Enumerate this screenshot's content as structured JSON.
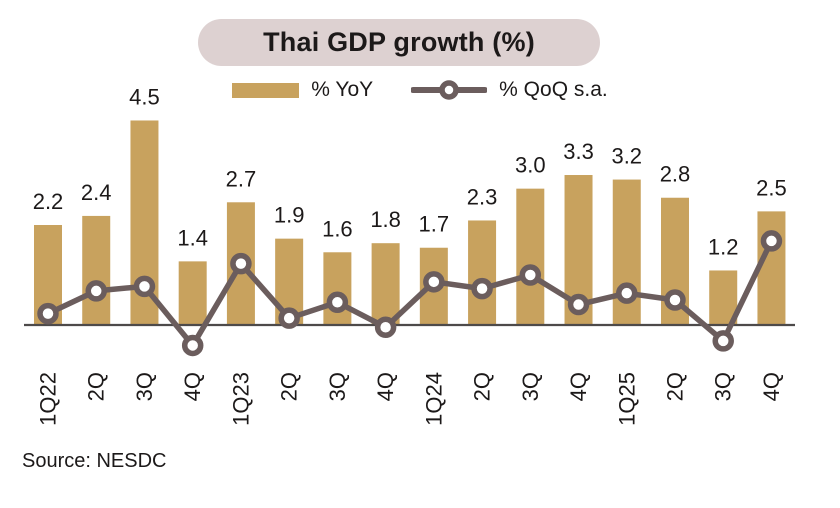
{
  "title": "Thai GDP growth (%)",
  "source": "Source: NESDC",
  "legend": {
    "items": [
      {
        "label": "% YoY",
        "swatch": "bar"
      },
      {
        "label": "% QoQ s.a.",
        "swatch": "line-marker"
      }
    ]
  },
  "colors": {
    "bar": "#C8A25E",
    "line": "#6B5D5D",
    "marker_fill": "#FFFFFF",
    "axis": "#4D4A4A",
    "title_pill_bg": "#DDD1D1",
    "text": "#1C1919"
  },
  "chart_data": {
    "type": "bar+line combo",
    "title": "Thai GDP growth (%)",
    "xlabel": "",
    "ylabel": "",
    "y_axis_visible": false,
    "grid": false,
    "legend_position": "top-center",
    "baseline_axis": true,
    "ylim": [
      -1.0,
      5.0
    ],
    "categories": [
      "1Q22",
      "2Q",
      "3Q",
      "4Q",
      "1Q23",
      "2Q",
      "3Q",
      "4Q",
      "1Q24",
      "2Q",
      "3Q",
      "4Q",
      "1Q25",
      "2Q",
      "3Q",
      "4Q"
    ],
    "series": [
      {
        "name": "% YoY",
        "type": "bar",
        "data_labels_shown": true,
        "values": [
          2.2,
          2.4,
          4.5,
          1.4,
          2.7,
          1.9,
          1.6,
          1.8,
          1.7,
          2.3,
          3.0,
          3.3,
          3.2,
          2.8,
          1.2,
          2.5
        ],
        "labels": [
          "2.2",
          "2.4",
          "4.5",
          "1.4",
          "2.7",
          "1.9",
          "1.6",
          "1.8",
          "1.7",
          "2.3",
          "3.0",
          "3.3",
          "3.2",
          "2.8",
          "1.2",
          "2.5"
        ]
      },
      {
        "name": "% QoQ s.a.",
        "type": "line",
        "data_labels_shown": false,
        "values_estimated_from_pixels": true,
        "values": [
          0.25,
          0.75,
          0.85,
          -0.45,
          1.35,
          0.15,
          0.5,
          -0.05,
          0.95,
          0.8,
          1.1,
          0.45,
          0.7,
          0.55,
          -0.35,
          1.85
        ]
      }
    ]
  }
}
